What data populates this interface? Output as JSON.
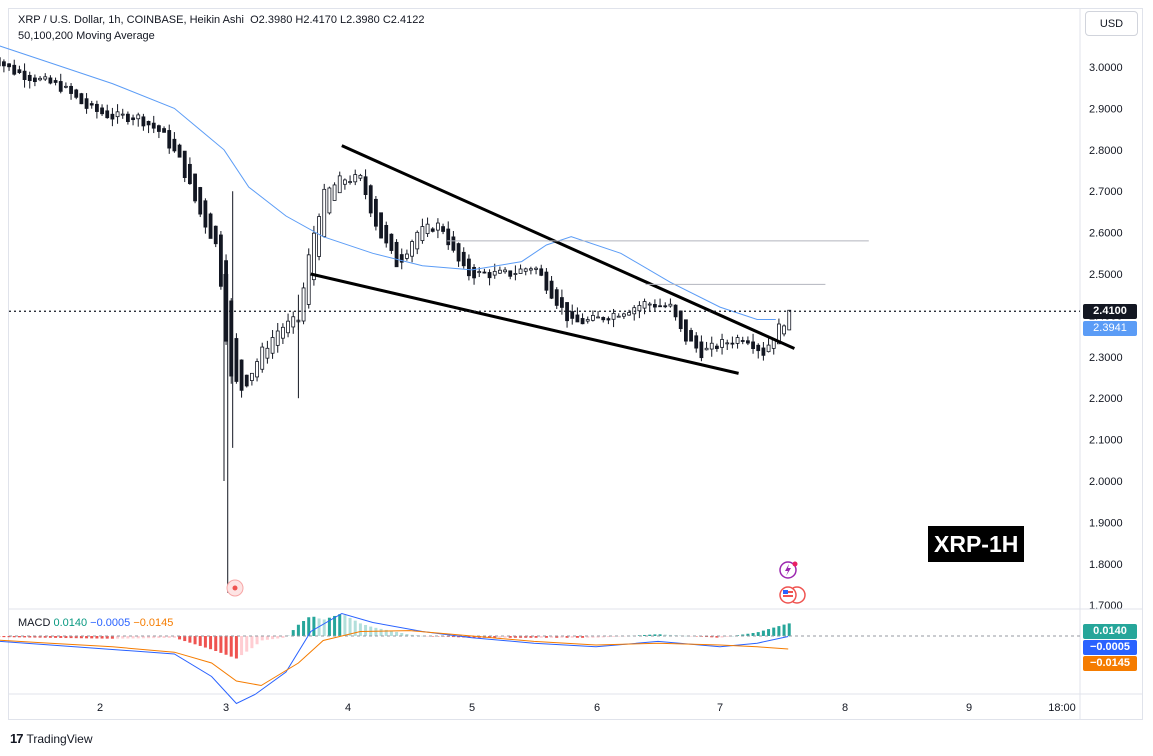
{
  "header": {
    "title": "XRP / U.S. Dollar, 1h, COINBASE, Heikin Ashi",
    "ohlc": "O2.3980  H2.4170  L2.3980  C2.4122",
    "indicator": "50,100,200 Moving Average"
  },
  "currency_button": "USD",
  "price_tags": {
    "last": "2.4100",
    "ma": "2.3941"
  },
  "macd_legend": {
    "label": "MACD",
    "v1": "0.0140",
    "v2": "−0.0005",
    "v3": "−0.0145"
  },
  "macd_tags": {
    "hist": "0.0140",
    "macd": "−0.0005",
    "signal": "−0.0145"
  },
  "watermark": "XRP-1H",
  "brand": "TradingView",
  "colors": {
    "up": "#26a69a",
    "down": "#ef5350",
    "candle": "#131722",
    "ma": "#5b9cf6",
    "macd": "#2962ff",
    "signal": "#f57c00"
  },
  "chart_data": {
    "type": "candlestick",
    "title": "XRP / U.S. Dollar, 1h, COINBASE, Heikin Ashi",
    "y_ticks": [
      "3.0000",
      "2.9000",
      "2.8000",
      "2.7000",
      "2.6000",
      "2.5000",
      "2.4000",
      "2.3000",
      "2.2000",
      "2.1000",
      "2.0000",
      "1.9000",
      "1.8000",
      "1.7000"
    ],
    "x_ticks": [
      "2",
      "3",
      "4",
      "5",
      "6",
      "7",
      "8",
      "9",
      "18:00"
    ],
    "ylim": [
      1.69,
      3.14
    ],
    "current_price": 2.41,
    "ma_value": 2.3941,
    "trendlines": [
      {
        "from": [
          3.95,
          2.81
        ],
        "to": [
          7.6,
          2.32
        ]
      },
      {
        "from": [
          3.7,
          2.5
        ],
        "to": [
          7.15,
          2.26
        ]
      },
      {
        "from": [
          4.8,
          2.58
        ],
        "to": [
          8.2,
          2.58
        ]
      },
      {
        "from": [
          6.4,
          2.475
        ],
        "to": [
          7.85,
          2.475
        ]
      }
    ],
    "ma_series": [
      [
        1.1,
        3.06
      ],
      [
        1.6,
        3.01
      ],
      [
        2.1,
        2.96
      ],
      [
        2.6,
        2.9
      ],
      [
        3.0,
        2.8
      ],
      [
        3.2,
        2.71
      ],
      [
        3.5,
        2.64
      ],
      [
        3.8,
        2.59
      ],
      [
        4.2,
        2.55
      ],
      [
        4.6,
        2.52
      ],
      [
        5.0,
        2.51
      ],
      [
        5.4,
        2.53
      ],
      [
        5.6,
        2.57
      ],
      [
        5.8,
        2.59
      ],
      [
        6.2,
        2.55
      ],
      [
        6.6,
        2.48
      ],
      [
        7.0,
        2.42
      ],
      [
        7.3,
        2.39
      ],
      [
        7.45,
        2.39
      ]
    ],
    "candles_path": [
      [
        1.1,
        3.03
      ],
      [
        1.3,
        2.99
      ],
      [
        1.5,
        2.97
      ],
      [
        1.7,
        2.95
      ],
      [
        1.9,
        2.9
      ],
      [
        2.1,
        2.88
      ],
      [
        2.3,
        2.88
      ],
      [
        2.5,
        2.84
      ],
      [
        2.65,
        2.77
      ],
      [
        2.8,
        2.65
      ],
      [
        2.95,
        2.56
      ],
      [
        3.0,
        2.4
      ],
      [
        3.05,
        2.25
      ],
      [
        3.15,
        2.22
      ],
      [
        3.3,
        2.31
      ],
      [
        3.45,
        2.37
      ],
      [
        3.6,
        2.39
      ],
      [
        3.7,
        2.57
      ],
      [
        3.8,
        2.69
      ],
      [
        3.95,
        2.73
      ],
      [
        4.1,
        2.73
      ],
      [
        4.25,
        2.6
      ],
      [
        4.4,
        2.52
      ],
      [
        4.55,
        2.6
      ],
      [
        4.75,
        2.62
      ],
      [
        4.85,
        2.55
      ],
      [
        4.95,
        2.5
      ],
      [
        5.1,
        2.5
      ],
      [
        5.3,
        2.5
      ],
      [
        5.5,
        2.52
      ],
      [
        5.65,
        2.45
      ],
      [
        5.8,
        2.38
      ],
      [
        6.0,
        2.39
      ],
      [
        6.2,
        2.41
      ],
      [
        6.4,
        2.43
      ],
      [
        6.6,
        2.42
      ],
      [
        6.7,
        2.35
      ],
      [
        6.85,
        2.31
      ],
      [
        7.0,
        2.33
      ],
      [
        7.2,
        2.35
      ],
      [
        7.35,
        2.31
      ],
      [
        7.45,
        2.36
      ],
      [
        7.55,
        2.4
      ]
    ],
    "macd": {
      "ylim": [
        -0.09,
        0.04
      ],
      "macd_line": [
        [
          1.1,
          -0.005
        ],
        [
          1.6,
          -0.01
        ],
        [
          2.1,
          -0.015
        ],
        [
          2.6,
          -0.02
        ],
        [
          2.9,
          -0.045
        ],
        [
          3.1,
          -0.075
        ],
        [
          3.25,
          -0.065
        ],
        [
          3.5,
          -0.04
        ],
        [
          3.7,
          0.005
        ],
        [
          3.95,
          0.025
        ],
        [
          4.2,
          0.015
        ],
        [
          4.6,
          0.005
        ],
        [
          5.0,
          -0.002
        ],
        [
          5.5,
          -0.008
        ],
        [
          6.0,
          -0.012
        ],
        [
          6.5,
          -0.006
        ],
        [
          7.0,
          -0.012
        ],
        [
          7.3,
          -0.008
        ],
        [
          7.55,
          -0.0005
        ]
      ],
      "signal_line": [
        [
          1.1,
          -0.004
        ],
        [
          1.6,
          -0.008
        ],
        [
          2.1,
          -0.012
        ],
        [
          2.6,
          -0.018
        ],
        [
          2.9,
          -0.03
        ],
        [
          3.1,
          -0.05
        ],
        [
          3.3,
          -0.055
        ],
        [
          3.6,
          -0.03
        ],
        [
          3.8,
          -0.005
        ],
        [
          4.1,
          0.005
        ],
        [
          4.5,
          0.006
        ],
        [
          5.0,
          0.0
        ],
        [
          5.5,
          -0.006
        ],
        [
          6.0,
          -0.01
        ],
        [
          6.5,
          -0.008
        ],
        [
          7.0,
          -0.01
        ],
        [
          7.3,
          -0.012
        ],
        [
          7.55,
          -0.0145
        ]
      ]
    }
  }
}
